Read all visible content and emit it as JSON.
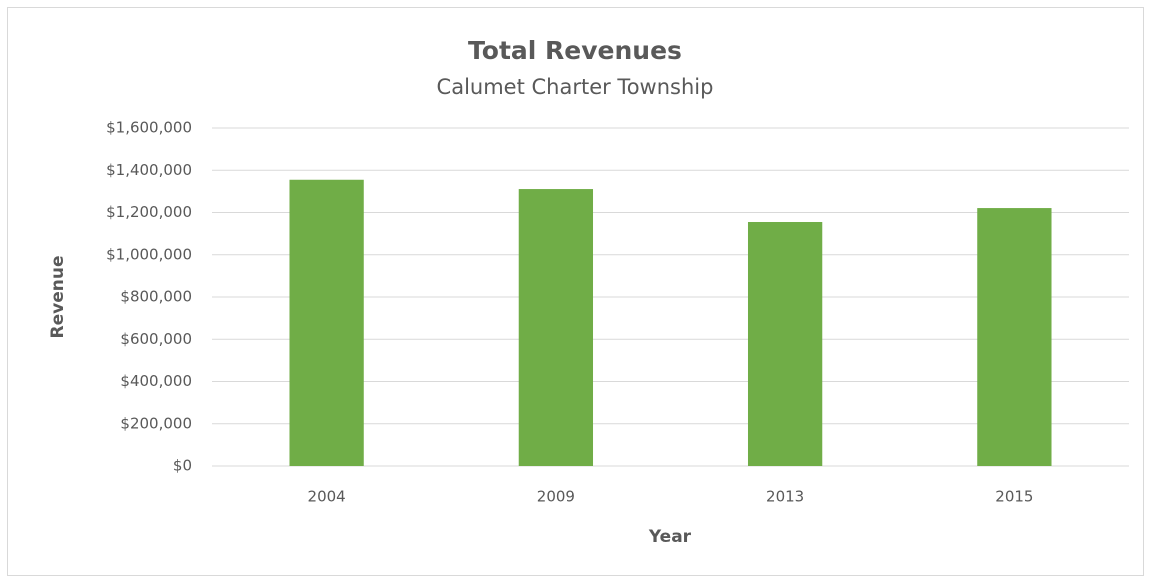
{
  "chart_data": {
    "type": "bar",
    "title": "Total Revenues",
    "subtitle": "Calumet Charter Township",
    "x_label": "Year",
    "y_label": "Revenue",
    "categories": [
      "2004",
      "2009",
      "2013",
      "2015"
    ],
    "values": [
      1355000,
      1311000,
      1155000,
      1221000
    ],
    "color": "#70ad47",
    "ylim": [
      0,
      1600000
    ],
    "yticks": [
      {
        "value": 0,
        "label": "$0"
      },
      {
        "value": 200000,
        "label": "$200,000"
      },
      {
        "value": 400000,
        "label": "$400,000"
      },
      {
        "value": 600000,
        "label": "$600,000"
      },
      {
        "value": 800000,
        "label": "$800,000"
      },
      {
        "value": 1000000,
        "label": "$1,000,000"
      },
      {
        "value": 1200000,
        "label": "$1,200,000"
      },
      {
        "value": 1400000,
        "label": "$1,400,000"
      },
      {
        "value": 1600000,
        "label": "$1,600,000"
      }
    ],
    "grid": true
  }
}
